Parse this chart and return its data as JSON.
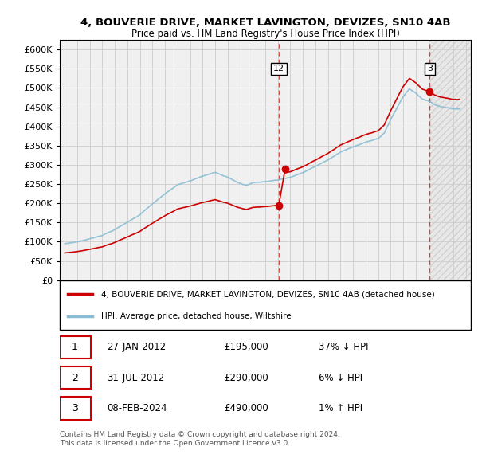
{
  "title": "4, BOUVERIE DRIVE, MARKET LAVINGTON, DEVIZES, SN10 4AB",
  "subtitle": "Price paid vs. HM Land Registry's House Price Index (HPI)",
  "legend_house": "4, BOUVERIE DRIVE, MARKET LAVINGTON, DEVIZES, SN10 4AB (detached house)",
  "legend_hpi": "HPI: Average price, detached house, Wiltshire",
  "transactions": [
    {
      "label": "1",
      "date": "27-JAN-2012",
      "price": 195000,
      "hpi_diff": "37% ↓ HPI",
      "x": 2012.08
    },
    {
      "label": "2",
      "date": "31-JUL-2012",
      "price": 290000,
      "hpi_diff": "6% ↓ HPI",
      "x": 2012.58
    },
    {
      "label": "3",
      "date": "08-FEB-2024",
      "price": 490000,
      "hpi_diff": "1% ↑ HPI",
      "x": 2024.11
    }
  ],
  "vline1_x": 2012.08,
  "vline2_x": 2024.11,
  "copyright": "Contains HM Land Registry data © Crown copyright and database right 2024.\nThis data is licensed under the Open Government Licence v3.0.",
  "hpi_color": "#89bdd3",
  "house_color": "#cc0000",
  "vline_color": "#cc0000",
  "background_color": "#f0f0f0",
  "grid_color": "#cccccc",
  "ylim": [
    0,
    625000
  ],
  "xlim_start": 1994.6,
  "xlim_end": 2027.4
}
